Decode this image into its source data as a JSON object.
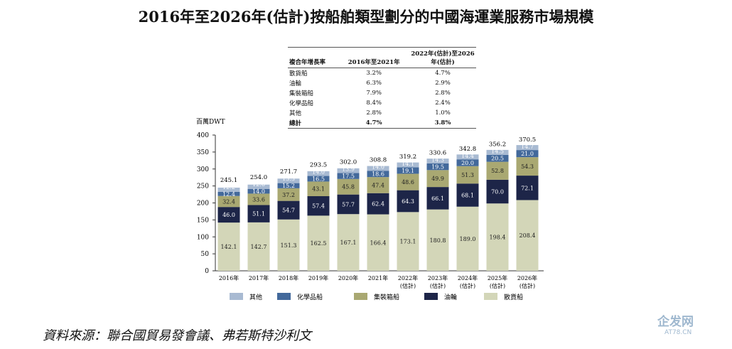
{
  "title": "2016年至2026年(估計)按船舶類型劃分的中國海運業服務市場規模",
  "cagr_table": {
    "headers": [
      "複合年增長率",
      "2016年至2021年",
      "2022年(估計)至2026年(估計)"
    ],
    "rows": [
      [
        "散貨船",
        "3.2%",
        "4.7%"
      ],
      [
        "油輪",
        "6.3%",
        "2.9%"
      ],
      [
        "集裝箱船",
        "7.9%",
        "2.8%"
      ],
      [
        "化學品船",
        "8.4%",
        "2.4%"
      ],
      [
        "其他",
        "2.8%",
        "1.0%"
      ],
      [
        "總計",
        "4.7%",
        "3.8%"
      ]
    ]
  },
  "chart_data": {
    "type": "bar",
    "stacked": true,
    "ylabel": "百萬DWT",
    "ylim": [
      0,
      400
    ],
    "yticks": [
      0,
      50,
      100,
      150,
      200,
      250,
      300,
      350,
      400
    ],
    "categories": [
      "2016年",
      "2017年",
      "2018年",
      "2019年",
      "2020年",
      "2021年",
      "2022年(估計)",
      "2023年(估計)",
      "2024年(估計)",
      "2025年(估計)",
      "2026年(估計)"
    ],
    "series": [
      {
        "name": "散貨船",
        "color": "#d3d6b8",
        "label_color": "#222",
        "values": [
          142.1,
          142.7,
          151.3,
          162.5,
          167.1,
          166.4,
          173.1,
          180.8,
          189.0,
          198.4,
          208.4
        ]
      },
      {
        "name": "油輪",
        "color": "#1d2548",
        "label_color": "#fff",
        "values": [
          46.0,
          51.1,
          54.7,
          57.4,
          57.7,
          62.4,
          64.3,
          66.1,
          68.1,
          70.0,
          72.1
        ]
      },
      {
        "name": "集裝箱船",
        "color": "#a9a872",
        "label_color": "#222",
        "values": [
          32.4,
          33.6,
          37.2,
          43.1,
          45.8,
          47.4,
          48.6,
          49.9,
          51.3,
          52.8,
          54.3
        ]
      },
      {
        "name": "化學品船",
        "color": "#43699b",
        "label_color": "#fff",
        "values": [
          12.4,
          14.0,
          15.2,
          16.5,
          17.5,
          18.6,
          19.1,
          19.5,
          20.0,
          20.5,
          21.0
        ]
      },
      {
        "name": "其他",
        "color": "#a8bad2",
        "label_color": "#fff",
        "values": [
          12.2,
          12.6,
          13.3,
          14.0,
          13.9,
          14.0,
          14.1,
          14.3,
          14.4,
          14.5,
          14.7
        ]
      }
    ],
    "totals": [
      245.1,
      254.0,
      271.7,
      293.5,
      302.0,
      308.8,
      319.2,
      330.6,
      342.8,
      356.2,
      370.5
    ],
    "legend_order": [
      "其他",
      "化學品船",
      "集裝箱船",
      "油輪",
      "散貨船"
    ],
    "legend": "bottom",
    "grid": false
  },
  "source": "資料來源：聯合國貿易發會議、弗若斯特沙利文",
  "watermark": {
    "name": "企发网",
    "url": "AT78.CN"
  }
}
